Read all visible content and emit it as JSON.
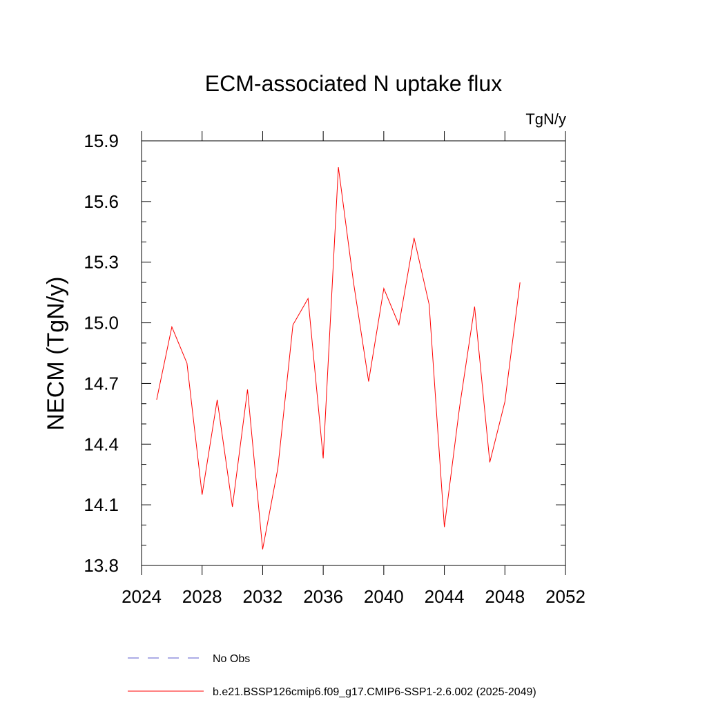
{
  "chart_data": {
    "type": "line",
    "title": "ECM-associated N uptake flux",
    "units_label": "TgN/y",
    "ylabel": "NECM  (TgN/y)",
    "xlabel": "",
    "xlim": [
      2024,
      2052
    ],
    "ylim": [
      13.8,
      15.9
    ],
    "x_ticks": [
      2024,
      2028,
      2032,
      2036,
      2040,
      2044,
      2048,
      2052
    ],
    "x_tick_labels": [
      "2024",
      "2028",
      "2032",
      "2036",
      "2040",
      "2044",
      "2048",
      "2052"
    ],
    "y_ticks": [
      13.8,
      14.1,
      14.4,
      14.7,
      15.0,
      15.3,
      15.6,
      15.9
    ],
    "y_tick_labels": [
      "13.8",
      "14.1",
      "14.4",
      "14.7",
      "15.0",
      "15.3",
      "15.6",
      "15.9"
    ],
    "grid": false,
    "legend_position": "bottom",
    "series": [
      {
        "name": "b.e21.BSSP126cmip6.f09_g17.CMIP6-SSP1-2.6.002 (2025-2049)",
        "color": "#ff0000",
        "x": [
          2025,
          2026,
          2027,
          2028,
          2029,
          2030,
          2031,
          2032,
          2033,
          2034,
          2035,
          2036,
          2037,
          2038,
          2039,
          2040,
          2041,
          2042,
          2043,
          2044,
          2045,
          2046,
          2047,
          2048,
          2049
        ],
        "values": [
          14.62,
          14.98,
          14.8,
          14.15,
          14.62,
          14.09,
          14.67,
          13.88,
          14.28,
          14.99,
          15.12,
          14.33,
          15.77,
          15.2,
          14.71,
          15.17,
          14.99,
          15.42,
          15.09,
          13.99,
          14.58,
          15.08,
          14.31,
          14.61,
          15.2
        ]
      }
    ],
    "legend": [
      {
        "label": "No Obs",
        "color": "#5a5acd",
        "style": "dashed"
      },
      {
        "label": "b.e21.BSSP126cmip6.f09_g17.CMIP6-SSP1-2.6.002 (2025-2049)",
        "color": "#ff0000",
        "style": "solid"
      }
    ]
  }
}
